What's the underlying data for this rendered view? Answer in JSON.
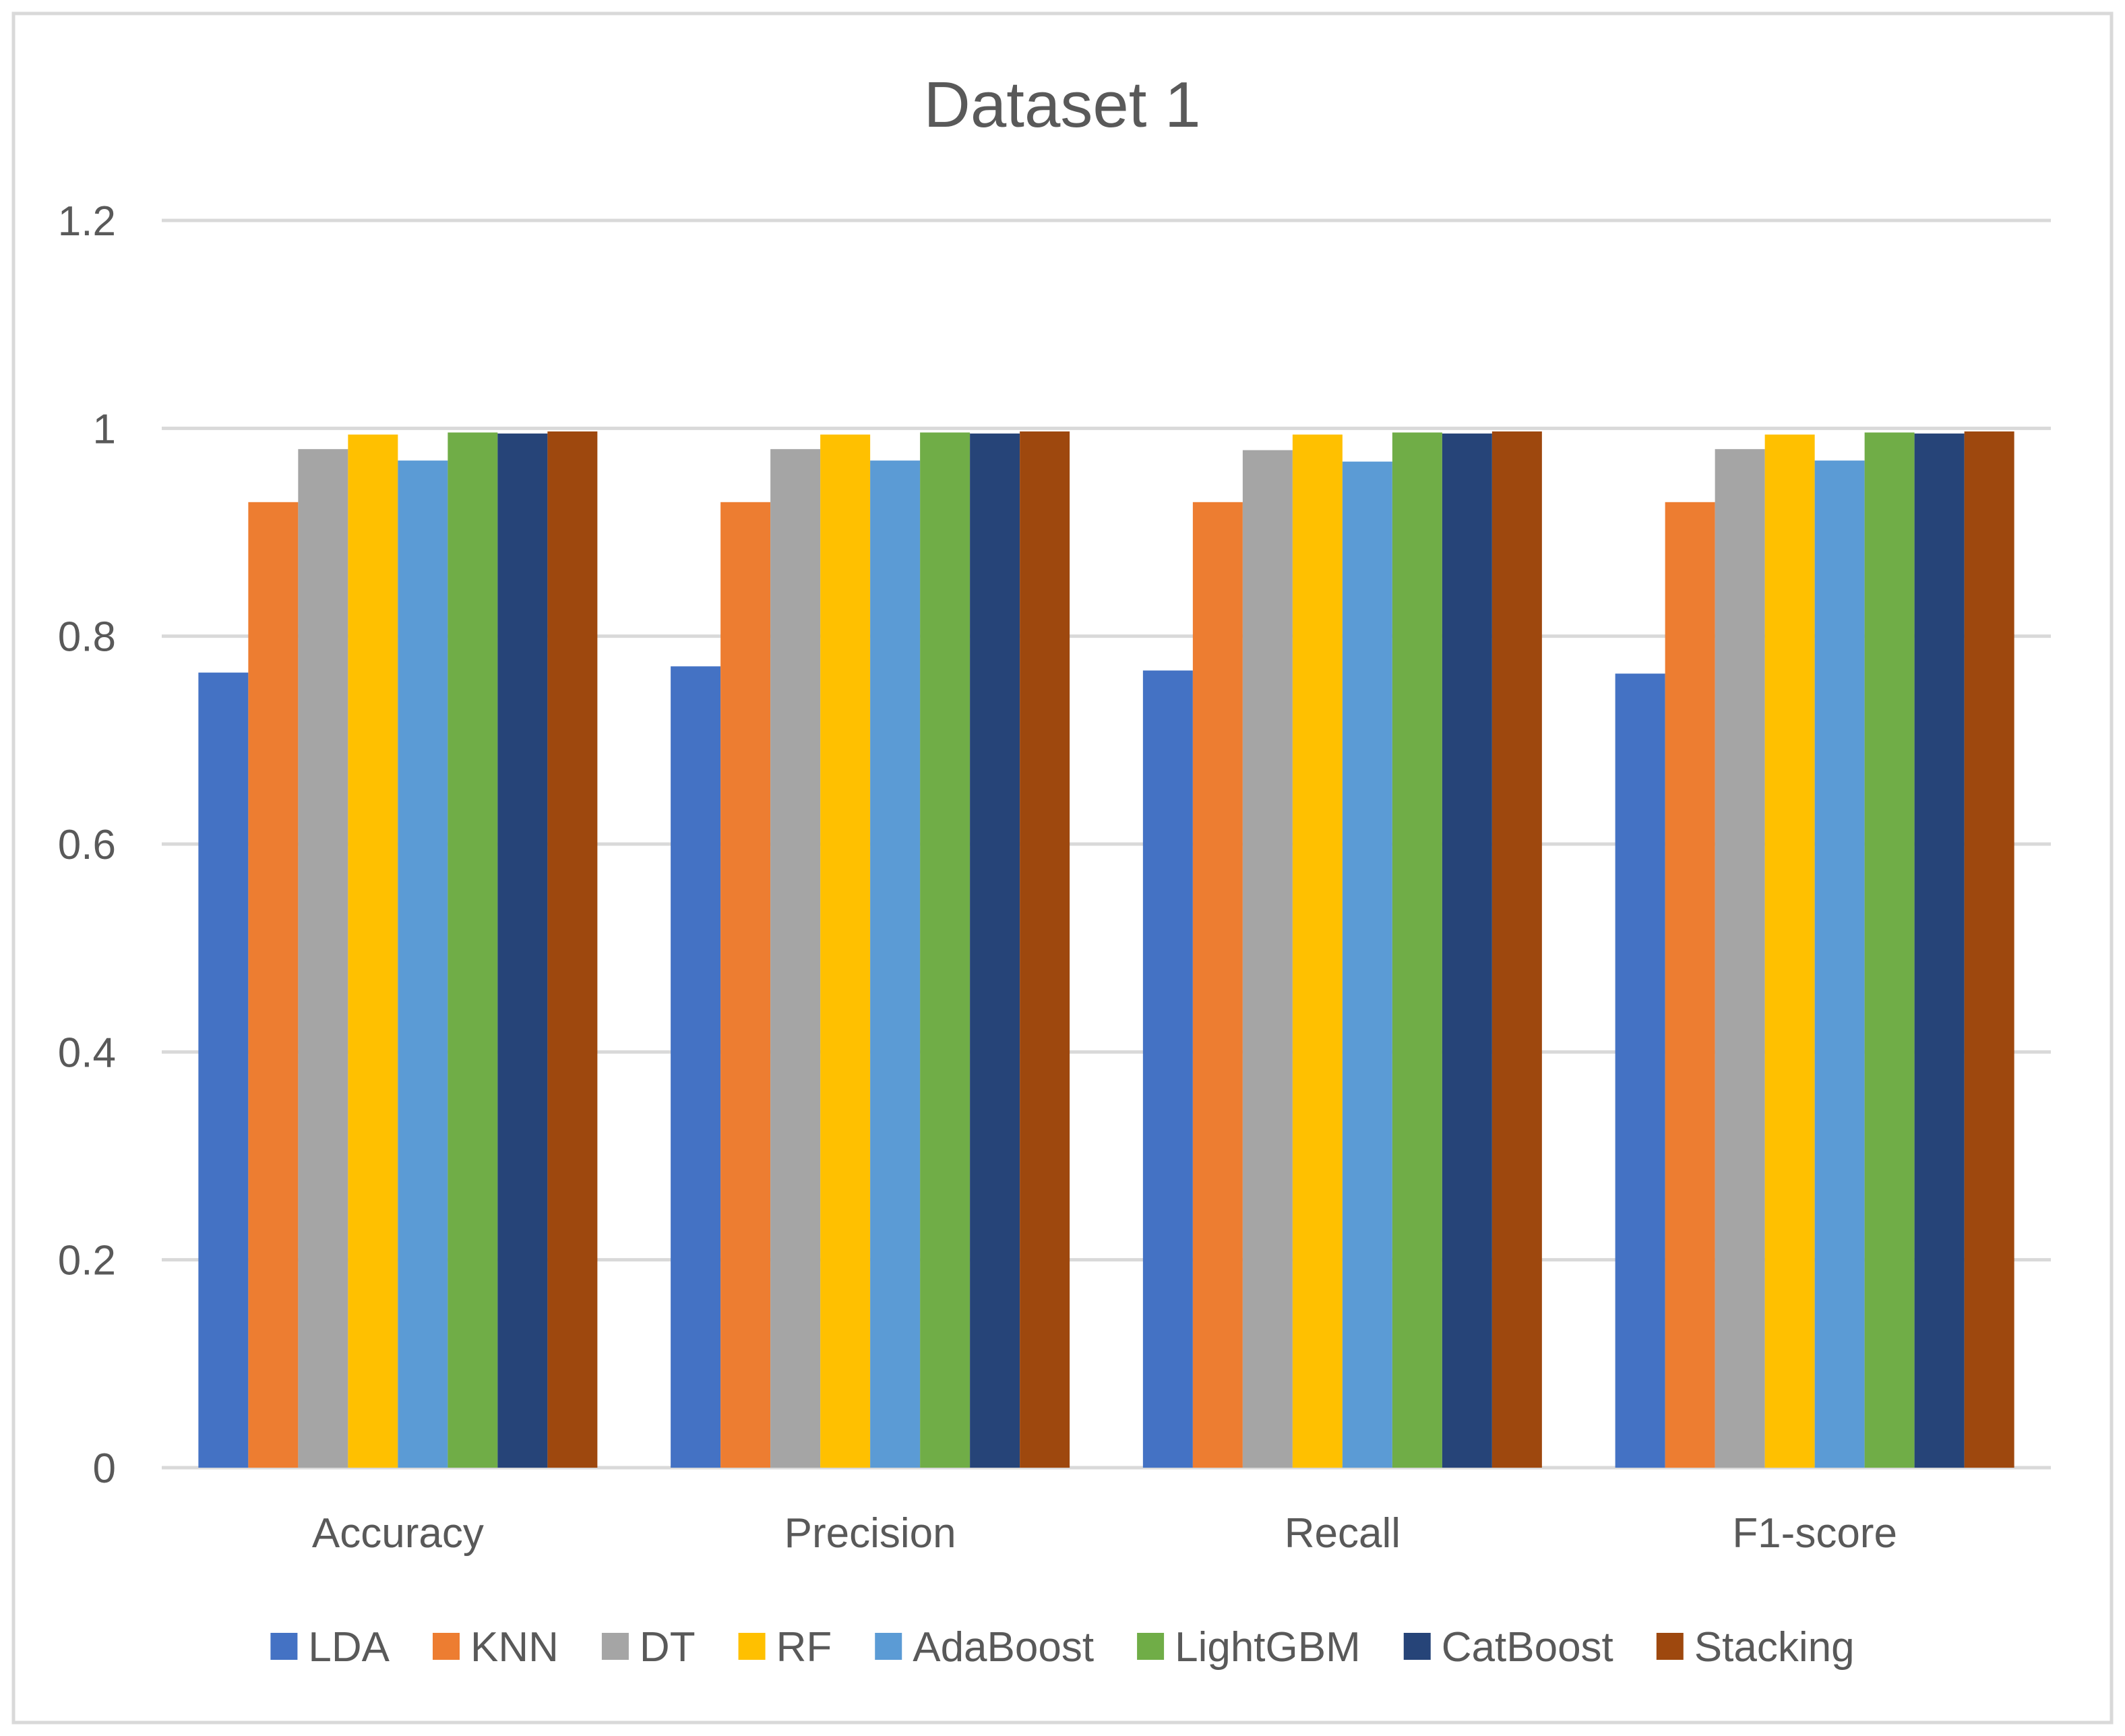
{
  "chart_data": {
    "type": "bar",
    "title": "Dataset 1",
    "xlabel": "",
    "ylabel": "",
    "categories": [
      "Accuracy",
      "Precision",
      "Recall",
      "F1-score"
    ],
    "ylim": [
      0,
      1.2
    ],
    "yticks": [
      0,
      0.2,
      0.4,
      0.6,
      0.8,
      1,
      1.2
    ],
    "ytick_labels": [
      "0",
      "0.2",
      "0.4",
      "0.6",
      "0.8",
      "1",
      "1.2"
    ],
    "grid": true,
    "legend_position": "bottom",
    "series": [
      {
        "name": "LDA",
        "color": "#4472C4",
        "values": [
          0.765,
          0.771,
          0.767,
          0.764
        ]
      },
      {
        "name": "KNN",
        "color": "#ED7D31",
        "values": [
          0.929,
          0.929,
          0.929,
          0.929
        ]
      },
      {
        "name": "DT",
        "color": "#A5A5A5",
        "values": [
          0.98,
          0.98,
          0.979,
          0.98
        ]
      },
      {
        "name": "RF",
        "color": "#FFC000",
        "values": [
          0.994,
          0.994,
          0.994,
          0.994
        ]
      },
      {
        "name": "AdaBoost",
        "color": "#5B9BD5",
        "values": [
          0.969,
          0.969,
          0.968,
          0.969
        ]
      },
      {
        "name": "LightGBM",
        "color": "#70AD47",
        "values": [
          0.996,
          0.996,
          0.996,
          0.996
        ]
      },
      {
        "name": "CatBoost",
        "color": "#264478",
        "values": [
          0.995,
          0.995,
          0.995,
          0.995
        ]
      },
      {
        "name": "Stacking",
        "color": "#9E480E",
        "values": [
          0.997,
          0.997,
          0.997,
          0.997
        ]
      }
    ]
  },
  "style": {
    "background": "#ffffff",
    "border_color": "#d9d9d9",
    "gridline_color": "#d9d9d9",
    "text_color": "#595959"
  }
}
